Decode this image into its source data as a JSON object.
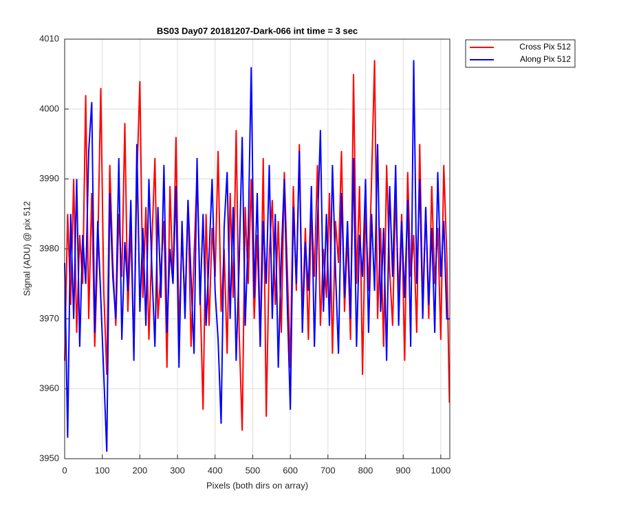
{
  "chart_data": {
    "type": "line",
    "title": "BS03 Day07 20181207-Dark-066 int time = 3 sec",
    "xlabel": "Pixels (both dirs on array)",
    "ylabel": "Signal (ADU) @ pix 512",
    "xlim": [
      0,
      1024
    ],
    "ylim": [
      3950,
      4010
    ],
    "xticks": [
      0,
      100,
      200,
      300,
      400,
      500,
      600,
      700,
      800,
      900,
      1000
    ],
    "yticks": [
      3950,
      3960,
      3970,
      3980,
      3990,
      4000,
      4010
    ],
    "grid": true,
    "legend": "outside-top-right",
    "x": [
      0,
      8,
      16,
      24,
      32,
      40,
      48,
      56,
      64,
      72,
      80,
      88,
      96,
      104,
      112,
      120,
      128,
      136,
      144,
      152,
      160,
      168,
      176,
      184,
      192,
      200,
      208,
      216,
      224,
      232,
      240,
      248,
      256,
      264,
      272,
      280,
      288,
      296,
      304,
      312,
      320,
      328,
      336,
      344,
      352,
      360,
      368,
      376,
      384,
      392,
      400,
      408,
      416,
      424,
      432,
      440,
      448,
      456,
      464,
      472,
      480,
      488,
      496,
      504,
      512,
      520,
      528,
      536,
      544,
      552,
      560,
      568,
      576,
      584,
      592,
      600,
      608,
      616,
      624,
      632,
      640,
      648,
      656,
      664,
      672,
      680,
      688,
      696,
      704,
      712,
      720,
      728,
      736,
      744,
      752,
      760,
      768,
      776,
      784,
      792,
      800,
      808,
      816,
      824,
      832,
      840,
      848,
      856,
      864,
      872,
      880,
      888,
      896,
      904,
      912,
      920,
      928,
      936,
      944,
      952,
      960,
      968,
      976,
      984,
      992,
      1000,
      1008,
      1016,
      1023
    ],
    "series": [
      {
        "name": "Cross Pix 512",
        "color": "#ff0000",
        "values": [
          3964,
          3985,
          3972,
          3990,
          3968,
          3982,
          3975,
          4002,
          3970,
          3988,
          3966,
          3980,
          4003,
          3974,
          3962,
          3992,
          3978,
          3969,
          3985,
          3976,
          3998,
          3971,
          3983,
          3965,
          3990,
          4004,
          3973,
          3986,
          3967,
          3981,
          3993,
          3970,
          3977,
          3984,
          3963,
          3989,
          3975,
          3996,
          3968,
          3982,
          3972,
          3987,
          3966,
          3979,
          3991,
          3974,
          3957,
          3985,
          3969,
          3983,
          3976,
          3994,
          3971,
          3980,
          3965,
          3988,
          3973,
          3997,
          3968,
          3954,
          3986,
          3975,
          3990,
          3970,
          3982,
          3966,
          3993,
          3956,
          3979,
          3987,
          3972,
          3984,
          3968,
          3991,
          3977,
          3963,
          3989,
          3974,
          3995,
          3970,
          3983,
          3967,
          3986,
          3976,
          3992,
          3969,
          3980,
          3973,
          3988,
          3965,
          3984,
          3978,
          3994,
          3971,
          3982,
          3967,
          4005,
          3975,
          3989,
          3962,
          3986,
          3974,
          3990,
          4007,
          3970,
          3983,
          3966,
          3992,
          3977,
          3969,
          3988,
          3973,
          3985,
          3964,
          3991,
          3976,
          3982,
          3968,
          3995,
          3972,
          3986,
          3970,
          3989,
          3975,
          3983,
          3967,
          3992,
          3979,
          3958
        ]
      },
      {
        "name": "Along Pix 512",
        "color": "#0000ff",
        "values": [
          3978,
          3953,
          3985,
          3970,
          3990,
          3966,
          3982,
          3975,
          3994,
          4001,
          3968,
          3984,
          3973,
          3962,
          3951,
          3988,
          3976,
          3970,
          3993,
          3967,
          3981,
          3974,
          3987,
          3964,
          3995,
          3971,
          3983,
          3969,
          3990,
          3977,
          3966,
          3986,
          3973,
          3992,
          3968,
          3980,
          3975,
          3989,
          3963,
          3984,
          3970,
          3987,
          3976,
          3965,
          3993,
          3972,
          3985,
          3969,
          3979,
          3990,
          3974,
          3967,
          3955,
          3983,
          3991,
          3970,
          3986,
          3964,
          3978,
          3996,
          3969,
          3982,
          4006,
          3973,
          3988,
          3966,
          3984,
          3975,
          3992,
          3970,
          3985,
          3963,
          3979,
          3990,
          3972,
          3957,
          3986,
          3975,
          3994,
          3968,
          3981,
          3974,
          3989,
          3966,
          3983,
          3997,
          3971,
          3985,
          3969,
          3992,
          3977,
          3965,
          3988,
          3973,
          3984,
          3970,
          3993,
          3966,
          3982,
          3976,
          3990,
          3968,
          3985,
          3974,
          3995,
          3971,
          3983,
          3964,
          3989,
          3976,
          3992,
          3969,
          3984,
          3973,
          3987,
          3966,
          4007,
          3975,
          3990,
          3970,
          3986,
          3972,
          3983,
          3968,
          3991,
          3976,
          3984,
          3970,
          3970
        ]
      }
    ]
  }
}
